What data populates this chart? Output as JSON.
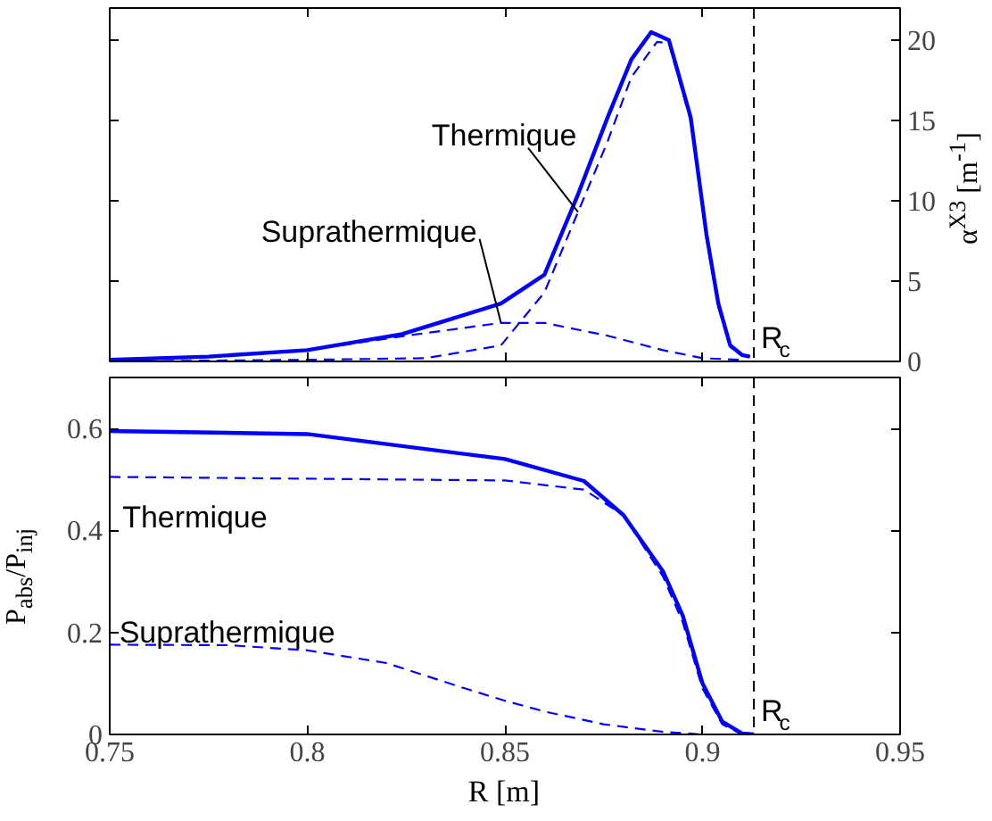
{
  "chart_data": [
    {
      "type": "line",
      "ylabel": "α$^{X3}$ [m$^{-1}$]",
      "xlim": [
        0.75,
        0.95
      ],
      "ylim": [
        0,
        22
      ],
      "xticks": [
        {
          "value": 0.75,
          "label": null
        },
        {
          "value": 0.8,
          "label": null
        },
        {
          "value": 0.85,
          "label": null
        },
        {
          "value": 0.9,
          "label": null
        },
        {
          "value": 0.95,
          "label": null
        }
      ],
      "yticks": [
        0,
        5,
        10,
        15,
        20
      ],
      "tick_labels": "y",
      "series": [
        {
          "color": "#0000ff",
          "line_style": "solid",
          "x": [
            0.75,
            0.775,
            0.8,
            0.824,
            0.849,
            0.86,
            0.8685,
            0.876,
            0.882,
            0.887,
            0.8915,
            0.897,
            0.901,
            0.904,
            0.907,
            0.91,
            0.912
          ],
          "values": [
            0.1,
            0.3,
            0.7,
            1.7,
            3.6,
            5.4,
            10.4,
            15.2,
            18.8,
            20.5,
            20.0,
            15.2,
            7.9,
            3.6,
            1.0,
            0.4,
            0.3
          ]
        },
        {
          "color": "#0000ff",
          "line_style": "dashed",
          "x": [
            0.75,
            0.8,
            0.83,
            0.849,
            0.86,
            0.8685,
            0.876,
            0.882,
            0.8885,
            0.8915,
            0.897,
            0.901,
            0.904,
            0.907,
            0.91,
            0.912
          ],
          "values": [
            0,
            0.1,
            0.2,
            1.0,
            4.3,
            9.3,
            13.7,
            17.7,
            19.9,
            19.8,
            15.0,
            7.7,
            3.4,
            0.9,
            0.4,
            0.3
          ]
        },
        {
          "color": "#0000ff",
          "line_style": "dashed",
          "x": [
            0.75,
            0.775,
            0.8,
            0.825,
            0.849,
            0.86,
            0.876,
            0.89,
            0.9,
            0.91
          ],
          "values": [
            0.1,
            0.3,
            0.7,
            1.6,
            2.4,
            2.4,
            1.6,
            0.7,
            0.2,
            0.1
          ]
        }
      ],
      "ref_lines": [
        {
          "axis": "x",
          "value": 0.913,
          "label": "R$_{c}$",
          "color": "#000000",
          "line_style": "dashed"
        }
      ],
      "annotations": [
        {
          "text": "Thermique",
          "x": 0.8685,
          "y": 9.3
        },
        {
          "text": "Suprathermique",
          "x": 0.849,
          "y": 2.4
        }
      ]
    },
    {
      "type": "line",
      "xlabel": "R [m]",
      "ylabel": "P$_{abs}$/P$_{inj}$",
      "xlim": [
        0.75,
        0.95
      ],
      "ylim": [
        0,
        0.7
      ],
      "xticks": [
        0.75,
        0.8,
        0.85,
        0.9,
        0.95
      ],
      "yticks": [
        0,
        0.2,
        0.4,
        0.6
      ],
      "series": [
        {
          "color": "#0000ff",
          "line_style": "solid",
          "x": [
            0.75,
            0.8,
            0.85,
            0.87,
            0.88,
            0.89,
            0.895,
            0.9,
            0.905,
            0.91,
            0.913
          ],
          "values": [
            0.595,
            0.589,
            0.54,
            0.497,
            0.43,
            0.32,
            0.233,
            0.1,
            0.025,
            0.002,
            0
          ]
        },
        {
          "color": "#0000ff",
          "line_style": "dashed",
          "x": [
            0.75,
            0.85,
            0.87,
            0.88,
            0.89,
            0.895,
            0.9,
            0.905,
            0.91
          ],
          "values": [
            0.505,
            0.498,
            0.48,
            0.43,
            0.31,
            0.22,
            0.09,
            0.02,
            0
          ]
        },
        {
          "color": "#0000ff",
          "line_style": "dashed",
          "x": [
            0.75,
            0.78,
            0.8,
            0.82,
            0.84,
            0.85,
            0.86,
            0.875,
            0.89,
            0.9
          ],
          "values": [
            0.176,
            0.175,
            0.165,
            0.14,
            0.09,
            0.066,
            0.045,
            0.02,
            0.005,
            0
          ]
        }
      ],
      "ref_lines": [
        {
          "axis": "x",
          "value": 0.913,
          "label": "R$_{c}$",
          "color": "#000000",
          "line_style": "dashed"
        }
      ],
      "annotations": [
        "Thermique",
        "Suprathermique"
      ]
    }
  ]
}
